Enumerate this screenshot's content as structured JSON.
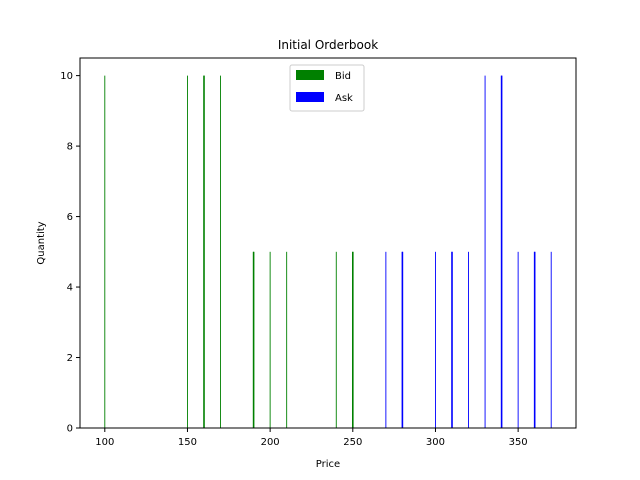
{
  "chart_data": {
    "type": "bar",
    "title": "Initial Orderbook",
    "xlabel": "Price",
    "ylabel": "Quantity",
    "xlim": [
      85,
      385
    ],
    "ylim": [
      0,
      10.5
    ],
    "xticks": [
      100,
      150,
      200,
      250,
      300,
      350
    ],
    "yticks": [
      0,
      2,
      4,
      6,
      8,
      10
    ],
    "grid": false,
    "legend_position": "upper center",
    "series": [
      {
        "name": "Bid",
        "color": "#008000",
        "points": [
          {
            "x": 100,
            "y": 10
          },
          {
            "x": 150,
            "y": 10
          },
          {
            "x": 160,
            "y": 10
          },
          {
            "x": 160,
            "y": 10
          },
          {
            "x": 170,
            "y": 10
          },
          {
            "x": 190,
            "y": 5
          },
          {
            "x": 190,
            "y": 5
          },
          {
            "x": 200,
            "y": 5
          },
          {
            "x": 210,
            "y": 5
          },
          {
            "x": 240,
            "y": 5
          },
          {
            "x": 250,
            "y": 5
          },
          {
            "x": 250,
            "y": 5
          }
        ]
      },
      {
        "name": "Ask",
        "color": "#0000ff",
        "points": [
          {
            "x": 270,
            "y": 5
          },
          {
            "x": 280,
            "y": 5
          },
          {
            "x": 280,
            "y": 5
          },
          {
            "x": 300,
            "y": 5
          },
          {
            "x": 310,
            "y": 5
          },
          {
            "x": 310,
            "y": 5
          },
          {
            "x": 320,
            "y": 5
          },
          {
            "x": 330,
            "y": 10
          },
          {
            "x": 340,
            "y": 10
          },
          {
            "x": 340,
            "y": 10
          },
          {
            "x": 350,
            "y": 5
          },
          {
            "x": 360,
            "y": 5
          },
          {
            "x": 360,
            "y": 5
          },
          {
            "x": 370,
            "y": 5
          }
        ]
      }
    ]
  }
}
